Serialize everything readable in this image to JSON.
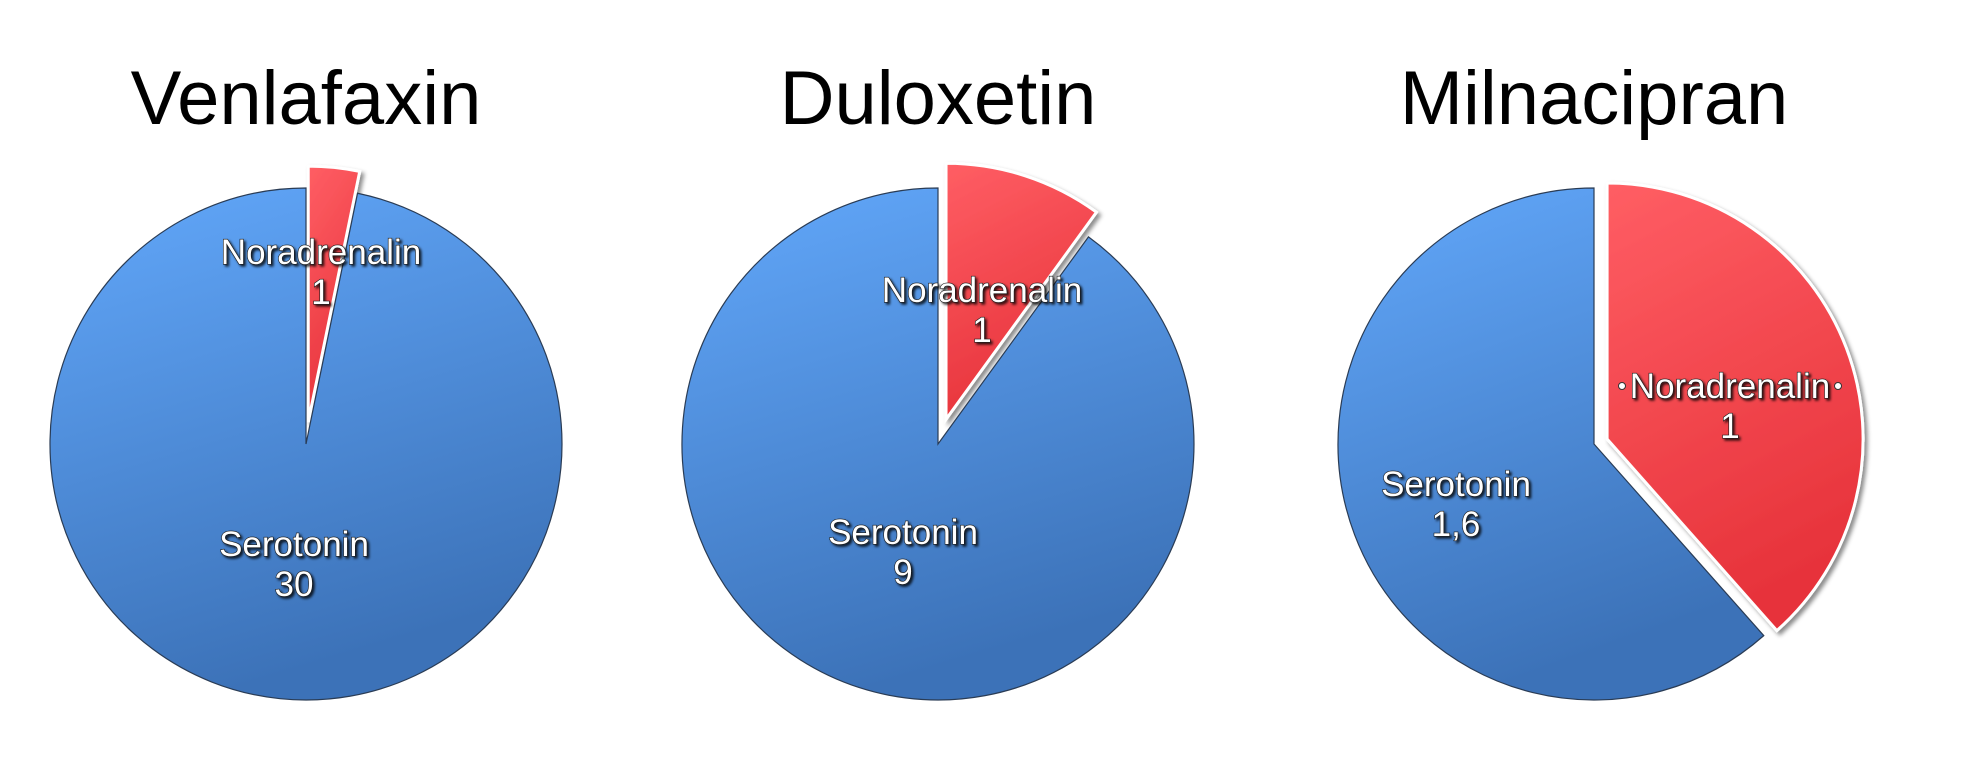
{
  "colors": {
    "serotonin": "#5a9ef0",
    "noradrenalin": "#f5474f"
  },
  "chart_data": [
    {
      "type": "pie",
      "title": "Venlafaxin",
      "slices": [
        {
          "label": "Noradrenalin",
          "value": 1,
          "display": "1",
          "color": "#f5474f",
          "exploded": true
        },
        {
          "label": "Serotonin",
          "value": 30,
          "display": "30",
          "color": "#5a9ef0",
          "exploded": false
        }
      ]
    },
    {
      "type": "pie",
      "title": "Duloxetin",
      "slices": [
        {
          "label": "Noradrenalin",
          "value": 1,
          "display": "1",
          "color": "#f5474f",
          "exploded": true
        },
        {
          "label": "Serotonin",
          "value": 9,
          "display": "9",
          "color": "#5a9ef0",
          "exploded": false
        }
      ]
    },
    {
      "type": "pie",
      "title": "Milnacipran",
      "slices": [
        {
          "label": "Noradrenalin",
          "value": 1,
          "display": "1",
          "color": "#f5474f",
          "exploded": true
        },
        {
          "label": "Serotonin",
          "value": 1.6,
          "display": "1,6",
          "color": "#5a9ef0",
          "exploded": false
        }
      ]
    }
  ]
}
